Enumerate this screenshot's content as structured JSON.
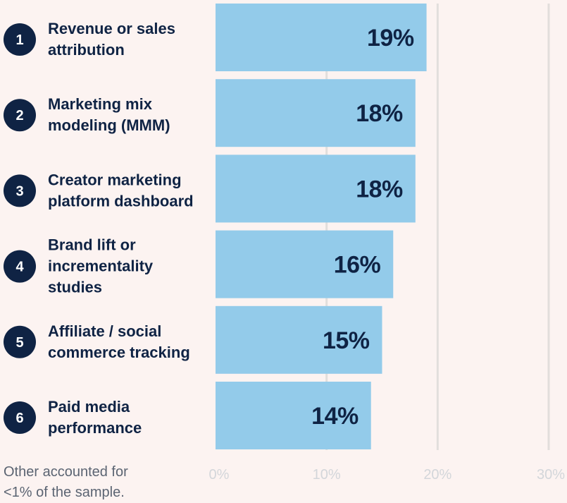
{
  "chart_data": {
    "type": "bar",
    "orientation": "horizontal",
    "categories": [
      "Revenue or sales\nattribution",
      "Marketing mix\nmodeling (MMM)",
      "Creator marketing\nplatform dashboard",
      "Brand lift or\nincrementality\nstudies",
      "Affiliate / social\ncommerce tracking",
      "Paid media\nperformance"
    ],
    "ranks": [
      "1",
      "2",
      "3",
      "4",
      "5",
      "6"
    ],
    "values": [
      19,
      18,
      18,
      16,
      15,
      14
    ],
    "value_labels": [
      "19%",
      "18%",
      "18%",
      "16%",
      "15%",
      "14%"
    ],
    "xlim": [
      0,
      30
    ],
    "xticks": [
      0,
      10,
      20,
      30
    ],
    "xtick_labels": [
      "0%",
      "10%",
      "20%",
      "30%"
    ],
    "grid": true,
    "colors": {
      "bar": "#93cbea",
      "rank_badge": "#0f2344",
      "label_text": "#0f2344",
      "grid": "#e2dedc",
      "tick_text": "#d3d6da",
      "background": "#fcf3f1"
    }
  },
  "footnote": "Other accounted for\n<1% of the sample."
}
